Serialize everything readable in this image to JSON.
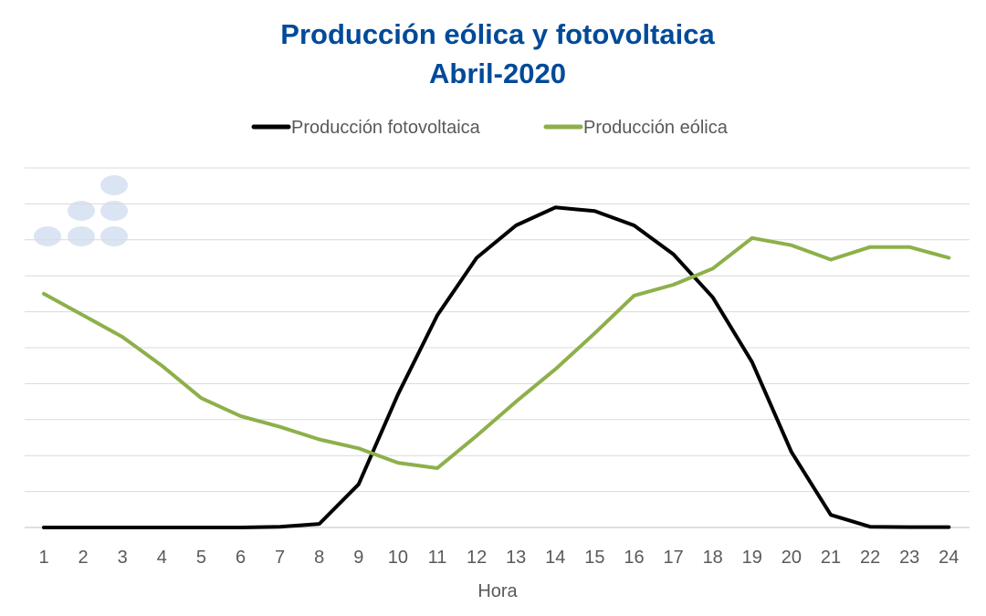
{
  "chart_data": {
    "type": "line",
    "title": "Producción eólica y fotovoltaica",
    "subtitle": "Abril-2020",
    "xlabel": "Hora",
    "ylabel": "",
    "legend_position": "top",
    "grid": true,
    "x": [
      1,
      2,
      3,
      4,
      5,
      6,
      7,
      8,
      9,
      10,
      11,
      12,
      13,
      14,
      15,
      16,
      17,
      18,
      19,
      20,
      21,
      22,
      23,
      24
    ],
    "ylim": [
      0,
      10
    ],
    "series": [
      {
        "name": "Producción fotovoltaica",
        "color": "#000000",
        "values": [
          0,
          0,
          0,
          0,
          0,
          0,
          0.02,
          0.1,
          1.2,
          3.7,
          5.9,
          7.5,
          8.4,
          8.9,
          8.8,
          8.4,
          7.6,
          6.4,
          4.6,
          2.1,
          0.35,
          0.02,
          0.01,
          0.01
        ]
      },
      {
        "name": "Producción eólica",
        "color": "#8db04a",
        "values": [
          6.5,
          5.9,
          5.3,
          4.5,
          3.6,
          3.1,
          2.8,
          2.45,
          2.2,
          1.8,
          1.65,
          2.55,
          3.5,
          4.4,
          5.4,
          6.45,
          6.75,
          7.2,
          8.05,
          7.85,
          7.45,
          7.8,
          7.8,
          7.5
        ]
      }
    ]
  }
}
